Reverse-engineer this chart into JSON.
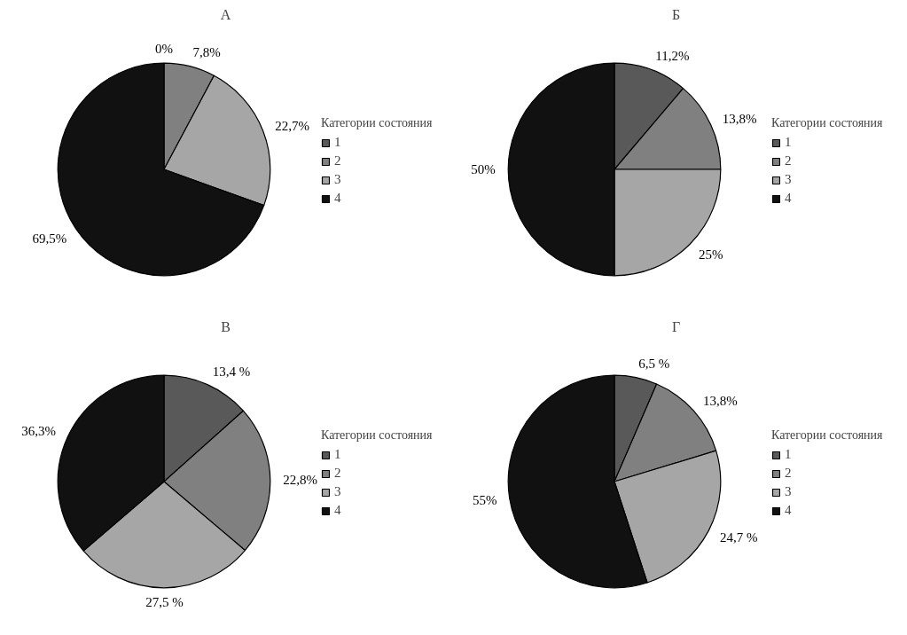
{
  "chart_data": [
    {
      "type": "pie",
      "title": "А",
      "categories": [
        "1",
        "2",
        "3",
        "4"
      ],
      "values": [
        0,
        7.8,
        22.7,
        69.5
      ],
      "value_labels": [
        "0%",
        "7,8%",
        "22,7%",
        "69,5%"
      ],
      "colors": [
        "#595959",
        "#808080",
        "#a6a6a6",
        "#111111"
      ],
      "legend_title": "Категории состояния",
      "legend": "right"
    },
    {
      "type": "pie",
      "title": "Б",
      "categories": [
        "1",
        "2",
        "3",
        "4"
      ],
      "values": [
        11.2,
        13.8,
        25,
        50
      ],
      "value_labels": [
        "11,2%",
        "13,8%",
        "25%",
        "50%"
      ],
      "colors": [
        "#595959",
        "#808080",
        "#a6a6a6",
        "#111111"
      ],
      "legend_title": "Категории состояния",
      "legend": "right"
    },
    {
      "type": "pie",
      "title": "В",
      "categories": [
        "1",
        "2",
        "3",
        "4"
      ],
      "values": [
        13.4,
        22.8,
        27.5,
        36.3
      ],
      "value_labels": [
        "13,4 %",
        "22,8%",
        "27,5 %",
        "36,3%"
      ],
      "colors": [
        "#595959",
        "#808080",
        "#a6a6a6",
        "#111111"
      ],
      "legend_title": "Категории состояния",
      "legend": "right"
    },
    {
      "type": "pie",
      "title": "Г",
      "categories": [
        "1",
        "2",
        "3",
        "4"
      ],
      "values": [
        6.5,
        13.8,
        24.7,
        55
      ],
      "value_labels": [
        "6,5 %",
        "13,8%",
        "24,7 %",
        "55%"
      ],
      "colors": [
        "#595959",
        "#808080",
        "#a6a6a6",
        "#111111"
      ],
      "legend_title": "Категории состояния",
      "legend": "right"
    }
  ]
}
